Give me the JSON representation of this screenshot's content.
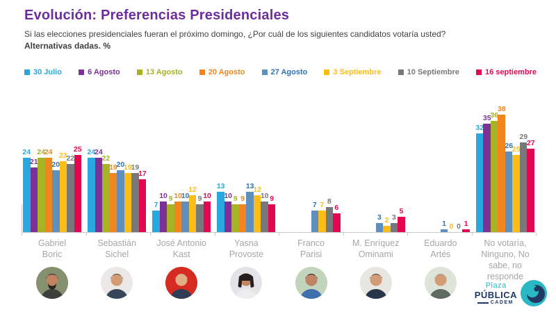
{
  "header": {
    "title": "Evolución: Preferencias Presidenciales",
    "subtitle": "Si las elecciones presidenciales fueran el próximo domingo, ¿Por cuál de los siguientes candidatos votaría usted?",
    "subtitle_bold": "Alternativas dadas. %"
  },
  "colors": {
    "title": "#6B2E9B",
    "body_text": "#3F3F3F",
    "axis": "#C9C9C9",
    "category_label": "#A6A6A6"
  },
  "chart_data": {
    "type": "bar",
    "title": "Evolución: Preferencias Presidenciales",
    "unit": "%",
    "ylim": [
      0,
      40
    ],
    "grid": false,
    "legend_position": "top",
    "value_labels": true,
    "categories": [
      "Gabriel Boric",
      "Sebastián Sichel",
      "José Antonio Kast",
      "Yasna Provoste",
      "Franco Parisi",
      "M. Enríquez Ominami",
      "Eduardo Artés",
      "No votaría, Ninguno, No sabe, no responde"
    ],
    "series": [
      {
        "name": "30 Julio",
        "color": "#29A8DF",
        "label_color": "#29A8DF",
        "values": [
          24,
          24,
          7,
          13,
          null,
          null,
          null,
          32
        ]
      },
      {
        "name": "6 Agosto",
        "color": "#7D3097",
        "label_color": "#7D3097",
        "values": [
          21,
          24,
          10,
          10,
          null,
          null,
          null,
          35
        ]
      },
      {
        "name": "13 Agosto",
        "color": "#A5B324",
        "label_color": "#A5B324",
        "values": [
          24,
          22,
          9,
          9,
          null,
          null,
          null,
          36
        ]
      },
      {
        "name": "20 Agosto",
        "color": "#F1861F",
        "label_color": "#F1861F",
        "values": [
          24,
          19,
          10,
          9,
          null,
          null,
          null,
          38
        ]
      },
      {
        "name": "27 Agosto",
        "color": "#5E8FBE",
        "label_color": "#2E74B5",
        "values": [
          20,
          20,
          10,
          13,
          7,
          3,
          1,
          26
        ]
      },
      {
        "name": "3 Septiembre",
        "color": "#FBBD16",
        "label_color": "#FBBD16",
        "values": [
          23,
          19,
          12,
          12,
          7,
          2,
          0,
          25
        ]
      },
      {
        "name": "10 Septiembre",
        "color": "#77787B",
        "label_color": "#77787B",
        "values": [
          22,
          19,
          9,
          10,
          8,
          3,
          0,
          29
        ]
      },
      {
        "name": "16 septiembre",
        "color": "#E3074F",
        "label_color": "#E3074F",
        "values": [
          25,
          17,
          10,
          9,
          6,
          5,
          1,
          27
        ]
      }
    ]
  },
  "candidates": [
    {
      "name": "Gabriel Boric",
      "lines": [
        "Gabriel",
        "Boric"
      ],
      "avatar": {
        "bg": "#85906F",
        "skin": "#C08464",
        "hair": "#2B2420",
        "shirt": "#3E3F3B",
        "style": "beard"
      }
    },
    {
      "name": "Sebastián Sichel",
      "lines": [
        "Sebastián",
        "Sichel"
      ],
      "avatar": {
        "bg": "#EAE9E7",
        "skin": "#D29C74",
        "hair": "#53402E",
        "shirt": "#39465A",
        "style": "short"
      }
    },
    {
      "name": "José Antonio Kast",
      "lines": [
        "José Antonio",
        "Kast"
      ],
      "avatar": {
        "bg": "#D62B20",
        "skin": "#E2AE85",
        "hair": "#BFB49A",
        "shirt": "#2F3E57",
        "style": "short"
      }
    },
    {
      "name": "Yasna Provoste",
      "lines": [
        "Yasna",
        "Provoste"
      ],
      "avatar": {
        "bg": "#E4E3E7",
        "skin": "#C08464",
        "hair": "#241E1F",
        "shirt": "#EDEDED",
        "style": "bob"
      }
    },
    {
      "name": "Franco Parisi",
      "lines": [
        "Franco",
        "Parisi"
      ],
      "avatar": {
        "bg": "#C2D4BC",
        "skin": "#C08464",
        "hair": "#221D1C",
        "shirt": "#3F6FAC",
        "style": "short"
      }
    },
    {
      "name": "M. Enríquez Ominami",
      "lines": [
        "M. Enríquez",
        "Ominami"
      ],
      "avatar": {
        "bg": "#E8E6E1",
        "skin": "#D29C74",
        "hair": "#47392C",
        "shirt": "#273648",
        "style": "short"
      }
    },
    {
      "name": "Eduardo Artés",
      "lines": [
        "Eduardo",
        "Artés"
      ],
      "avatar": {
        "bg": "#DEE5D8",
        "skin": "#D29C74",
        "hair": "#9A9A94",
        "shirt": "#5F6B60",
        "style": "short"
      }
    },
    {
      "name": "No votaría, Ninguno, No sabe, no responde",
      "lines": [
        "No votaría,",
        "Ninguno, No",
        "sabe, no",
        "responde"
      ],
      "avatar": null
    }
  ],
  "logo": {
    "plaza": "Plaza",
    "publica": "PÚBLICA",
    "cadem": "CADEM",
    "teal": "#2BB8C5",
    "navy": "#1F3864"
  }
}
